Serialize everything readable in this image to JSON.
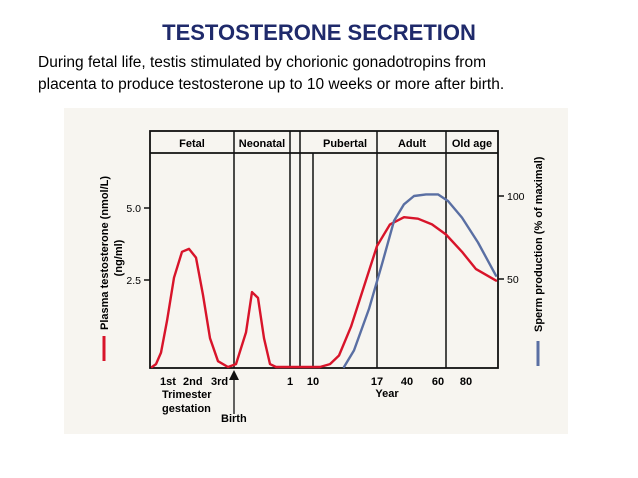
{
  "slide": {
    "title": "TESTOSTERONE SECRETION",
    "subtitle_lines": [
      "During fetal life, testis stimulated by chorionic gonadotropins from",
      "placenta to produce testosterone up to 10 weeks or more after birth."
    ]
  },
  "chart_data": {
    "type": "line",
    "phases": [
      "Fetal",
      "Neonatal",
      "Pubertal",
      "Adult",
      "Old age"
    ],
    "left_axis": {
      "label_line1": "Plasma testosterone (nmol/L)",
      "label_line2": "(ng/ml)",
      "ticks": [
        {
          "value": 2.5,
          "label": "2.5"
        },
        {
          "value": 5.0,
          "label": "5.0"
        }
      ],
      "range": [
        0,
        6
      ]
    },
    "right_axis": {
      "label": "Sperm production (% of maximal)",
      "ticks": [
        {
          "value": 50,
          "label": "50"
        },
        {
          "value": 100,
          "label": "100"
        }
      ],
      "range": [
        0,
        120
      ]
    },
    "x_labels": {
      "trimesters": [
        "1st",
        "2nd",
        "3rd"
      ],
      "trimester_caption_line1": "Trimester",
      "trimester_caption_line2": "gestation",
      "birth": "Birth",
      "years": [
        "1",
        "10",
        "17",
        "40",
        "60",
        "80"
      ],
      "year_caption": "Year"
    },
    "series": [
      {
        "key": "testosterone",
        "color": "#d8142a",
        "axis": "left",
        "values": [
          0,
          0.1,
          0.5,
          1.6,
          3.1,
          4.0,
          4.1,
          3.8,
          2.5,
          1.0,
          0.2,
          0,
          0.1,
          1.2,
          2.6,
          2.4,
          1.0,
          0.1,
          0,
          0,
          0,
          0,
          0.1,
          0.4,
          1.4,
          2.8,
          4.2,
          4.95,
          5.2,
          5.15,
          4.95,
          4.6,
          4.0,
          3.4,
          3.0
        ]
      },
      {
        "key": "sperm",
        "color": "#5a6fa3",
        "axis": "right",
        "values": [
          0,
          10,
          35,
          62,
          88,
          98,
          103,
          104,
          104,
          100,
          90,
          75,
          55
        ]
      }
    ]
  }
}
